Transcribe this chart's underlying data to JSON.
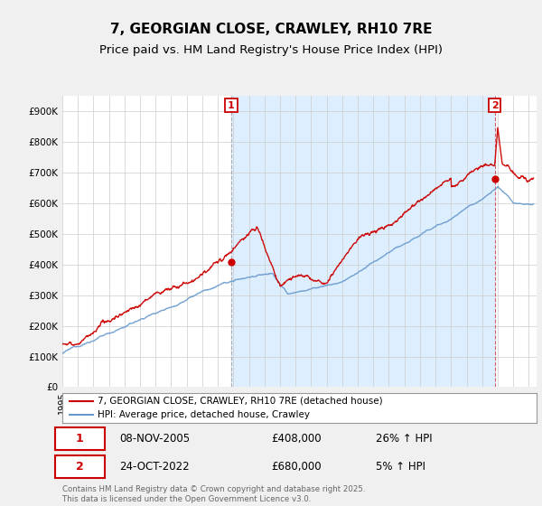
{
  "title": "7, GEORGIAN CLOSE, CRAWLEY, RH10 7RE",
  "subtitle": "Price paid vs. HM Land Registry's House Price Index (HPI)",
  "ylabel_ticks": [
    "£0",
    "£100K",
    "£200K",
    "£300K",
    "£400K",
    "£500K",
    "£600K",
    "£700K",
    "£800K",
    "£900K"
  ],
  "ytick_vals": [
    0,
    100000,
    200000,
    300000,
    400000,
    500000,
    600000,
    700000,
    800000,
    900000
  ],
  "ylim": [
    0,
    950000
  ],
  "xlim_start": 1995,
  "xlim_end": 2025.5,
  "sale1_x": 2005.86,
  "sale1_y": 408000,
  "sale1_label": "1",
  "sale1_date": "08-NOV-2005",
  "sale1_price": "£408,000",
  "sale1_hpi": "26% ↑ HPI",
  "sale2_x": 2022.81,
  "sale2_y": 680000,
  "sale2_label": "2",
  "sale2_date": "24-OCT-2022",
  "sale2_price": "£680,000",
  "sale2_hpi": "5% ↑ HPI",
  "red_color": "#cc0000",
  "blue_color": "#6699cc",
  "shade_color": "#ddeeff",
  "background_color": "#f0f0f0",
  "plot_background": "#ffffff",
  "legend_line1": "7, GEORGIAN CLOSE, CRAWLEY, RH10 7RE (detached house)",
  "legend_line2": "HPI: Average price, detached house, Crawley",
  "footer": "Contains HM Land Registry data © Crown copyright and database right 2025.\nThis data is licensed under the Open Government Licence v3.0.",
  "title_fontsize": 11,
  "subtitle_fontsize": 9.5
}
